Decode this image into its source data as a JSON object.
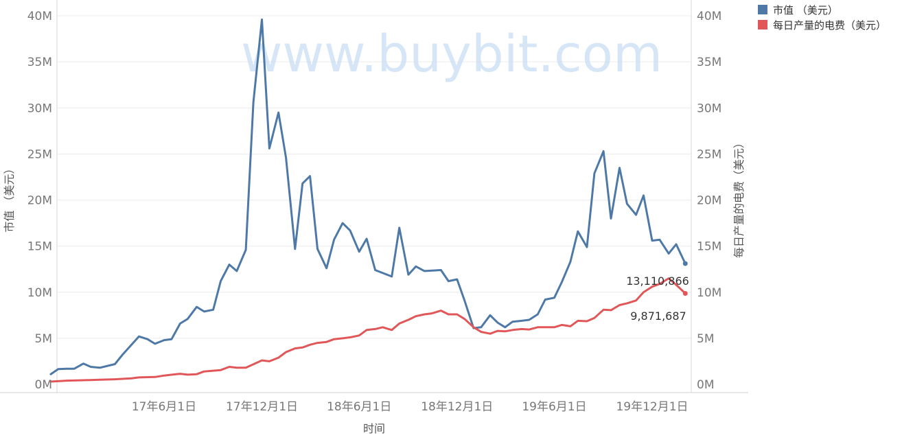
{
  "chart_data": {
    "type": "line",
    "xlabel": "时间",
    "ylabel_left": "市值 （美元）",
    "ylabel_right": "每日产量的电费（美元）",
    "watermark": "www.buybit.com",
    "ylim": [
      0,
      40000000
    ],
    "y_ticks": [
      0,
      5000000,
      10000000,
      15000000,
      20000000,
      25000000,
      30000000,
      35000000,
      40000000
    ],
    "y_tick_labels": [
      "0M",
      "5M",
      "10M",
      "15M",
      "20M",
      "25M",
      "30M",
      "35M",
      "40M"
    ],
    "x_ticks": [
      "2017-06-01",
      "2017-12-01",
      "2018-06-01",
      "2018-12-01",
      "2019-06-01",
      "2019-12-01"
    ],
    "x_tick_labels": [
      "17年6月1日",
      "17年12月1日",
      "18年6月1日",
      "18年12月1日",
      "19年6月1日",
      "19年12月1日"
    ],
    "legend_position": "top-right",
    "series": [
      {
        "name": "市值 （美元）",
        "color": "#4e79a7",
        "end_label": "13,110,866",
        "points": [
          [
            "2016-11-01",
            1100000
          ],
          [
            "2016-11-15",
            1650000
          ],
          [
            "2016-12-01",
            1700000
          ],
          [
            "2016-12-15",
            1700000
          ],
          [
            "2017-01-01",
            2250000
          ],
          [
            "2017-01-15",
            1900000
          ],
          [
            "2017-02-01",
            1800000
          ],
          [
            "2017-03-01",
            2200000
          ],
          [
            "2017-03-15",
            3200000
          ],
          [
            "2017-04-15",
            5200000
          ],
          [
            "2017-05-01",
            4900000
          ],
          [
            "2017-05-15",
            4400000
          ],
          [
            "2017-06-01",
            4800000
          ],
          [
            "2017-06-15",
            4900000
          ],
          [
            "2017-07-01",
            6600000
          ],
          [
            "2017-07-15",
            7100000
          ],
          [
            "2017-08-01",
            8400000
          ],
          [
            "2017-08-15",
            7900000
          ],
          [
            "2017-09-01",
            8100000
          ],
          [
            "2017-09-15",
            11200000
          ],
          [
            "2017-10-01",
            13000000
          ],
          [
            "2017-10-15",
            12300000
          ],
          [
            "2017-11-01",
            14600000
          ],
          [
            "2017-11-15",
            30600000
          ],
          [
            "2017-12-01",
            39600000
          ],
          [
            "2017-12-15",
            25600000
          ],
          [
            "2018-01-01",
            29500000
          ],
          [
            "2018-01-15",
            24600000
          ],
          [
            "2018-02-01",
            14700000
          ],
          [
            "2018-02-15",
            21800000
          ],
          [
            "2018-03-01",
            22600000
          ],
          [
            "2018-03-15",
            14700000
          ],
          [
            "2018-04-01",
            12600000
          ],
          [
            "2018-04-15",
            15700000
          ],
          [
            "2018-05-01",
            17500000
          ],
          [
            "2018-05-15",
            16700000
          ],
          [
            "2018-06-01",
            14400000
          ],
          [
            "2018-06-15",
            15800000
          ],
          [
            "2018-07-01",
            12400000
          ],
          [
            "2018-08-01",
            11700000
          ],
          [
            "2018-08-15",
            17000000
          ],
          [
            "2018-09-01",
            11900000
          ],
          [
            "2018-09-15",
            12800000
          ],
          [
            "2018-10-01",
            12300000
          ],
          [
            "2018-11-01",
            12400000
          ],
          [
            "2018-11-15",
            11200000
          ],
          [
            "2018-12-01",
            11400000
          ],
          [
            "2018-12-15",
            9100000
          ],
          [
            "2019-01-01",
            6100000
          ],
          [
            "2019-01-15",
            6200000
          ],
          [
            "2019-02-01",
            7500000
          ],
          [
            "2019-02-15",
            6700000
          ],
          [
            "2019-03-01",
            6200000
          ],
          [
            "2019-03-15",
            6800000
          ],
          [
            "2019-04-01",
            6900000
          ],
          [
            "2019-04-15",
            7000000
          ],
          [
            "2019-05-01",
            7600000
          ],
          [
            "2019-05-15",
            9200000
          ],
          [
            "2019-06-01",
            9400000
          ],
          [
            "2019-06-15",
            11100000
          ],
          [
            "2019-07-01",
            13300000
          ],
          [
            "2019-07-15",
            16600000
          ],
          [
            "2019-08-01",
            14900000
          ],
          [
            "2019-08-15",
            22900000
          ],
          [
            "2019-09-01",
            25300000
          ],
          [
            "2019-09-15",
            18000000
          ],
          [
            "2019-10-01",
            23500000
          ],
          [
            "2019-10-15",
            19600000
          ],
          [
            "2019-11-01",
            18400000
          ],
          [
            "2019-11-15",
            20500000
          ],
          [
            "2019-12-01",
            15600000
          ],
          [
            "2019-12-15",
            15700000
          ],
          [
            "2020-01-01",
            14200000
          ],
          [
            "2020-01-15",
            15200000
          ],
          [
            "2020-02-01",
            13110866
          ]
        ]
      },
      {
        "name": "每日产量的电费（美元）",
        "color": "#e15759",
        "end_label": "9,871,687",
        "points": [
          [
            "2016-11-01",
            300000
          ],
          [
            "2016-12-01",
            400000
          ],
          [
            "2017-01-01",
            450000
          ],
          [
            "2017-02-01",
            500000
          ],
          [
            "2017-03-01",
            550000
          ],
          [
            "2017-04-01",
            650000
          ],
          [
            "2017-04-15",
            750000
          ],
          [
            "2017-05-15",
            800000
          ],
          [
            "2017-06-01",
            950000
          ],
          [
            "2017-07-01",
            1150000
          ],
          [
            "2017-07-15",
            1050000
          ],
          [
            "2017-08-01",
            1100000
          ],
          [
            "2017-08-15",
            1400000
          ],
          [
            "2017-09-15",
            1550000
          ],
          [
            "2017-10-01",
            1900000
          ],
          [
            "2017-10-15",
            1800000
          ],
          [
            "2017-11-01",
            1800000
          ],
          [
            "2017-12-01",
            2600000
          ],
          [
            "2017-12-15",
            2500000
          ],
          [
            "2018-01-01",
            2900000
          ],
          [
            "2018-01-15",
            3500000
          ],
          [
            "2018-02-01",
            3900000
          ],
          [
            "2018-02-15",
            4000000
          ],
          [
            "2018-03-01",
            4300000
          ],
          [
            "2018-03-15",
            4500000
          ],
          [
            "2018-04-01",
            4600000
          ],
          [
            "2018-04-15",
            4900000
          ],
          [
            "2018-05-01",
            5000000
          ],
          [
            "2018-05-15",
            5100000
          ],
          [
            "2018-06-01",
            5300000
          ],
          [
            "2018-06-15",
            5900000
          ],
          [
            "2018-07-01",
            6000000
          ],
          [
            "2018-07-15",
            6200000
          ],
          [
            "2018-08-01",
            5900000
          ],
          [
            "2018-08-15",
            6600000
          ],
          [
            "2018-09-01",
            7000000
          ],
          [
            "2018-09-15",
            7400000
          ],
          [
            "2018-10-01",
            7600000
          ],
          [
            "2018-10-15",
            7700000
          ],
          [
            "2018-11-01",
            8000000
          ],
          [
            "2018-11-15",
            7600000
          ],
          [
            "2018-12-01",
            7600000
          ],
          [
            "2018-12-15",
            7100000
          ],
          [
            "2019-01-01",
            6200000
          ],
          [
            "2019-01-15",
            5700000
          ],
          [
            "2019-02-01",
            5500000
          ],
          [
            "2019-02-15",
            5800000
          ],
          [
            "2019-03-01",
            5750000
          ],
          [
            "2019-03-15",
            5900000
          ],
          [
            "2019-04-01",
            6000000
          ],
          [
            "2019-04-15",
            5950000
          ],
          [
            "2019-05-01",
            6200000
          ],
          [
            "2019-06-01",
            6200000
          ],
          [
            "2019-06-15",
            6450000
          ],
          [
            "2019-07-01",
            6300000
          ],
          [
            "2019-07-15",
            6900000
          ],
          [
            "2019-08-01",
            6850000
          ],
          [
            "2019-08-15",
            7200000
          ],
          [
            "2019-09-01",
            8100000
          ],
          [
            "2019-09-15",
            8050000
          ],
          [
            "2019-10-01",
            8600000
          ],
          [
            "2019-10-15",
            8800000
          ],
          [
            "2019-11-01",
            9100000
          ],
          [
            "2019-11-15",
            10000000
          ],
          [
            "2019-12-01",
            10600000
          ],
          [
            "2019-12-15",
            10900000
          ],
          [
            "2020-01-01",
            11500000
          ],
          [
            "2020-01-15",
            10800000
          ],
          [
            "2020-02-01",
            9871687
          ]
        ]
      }
    ]
  }
}
